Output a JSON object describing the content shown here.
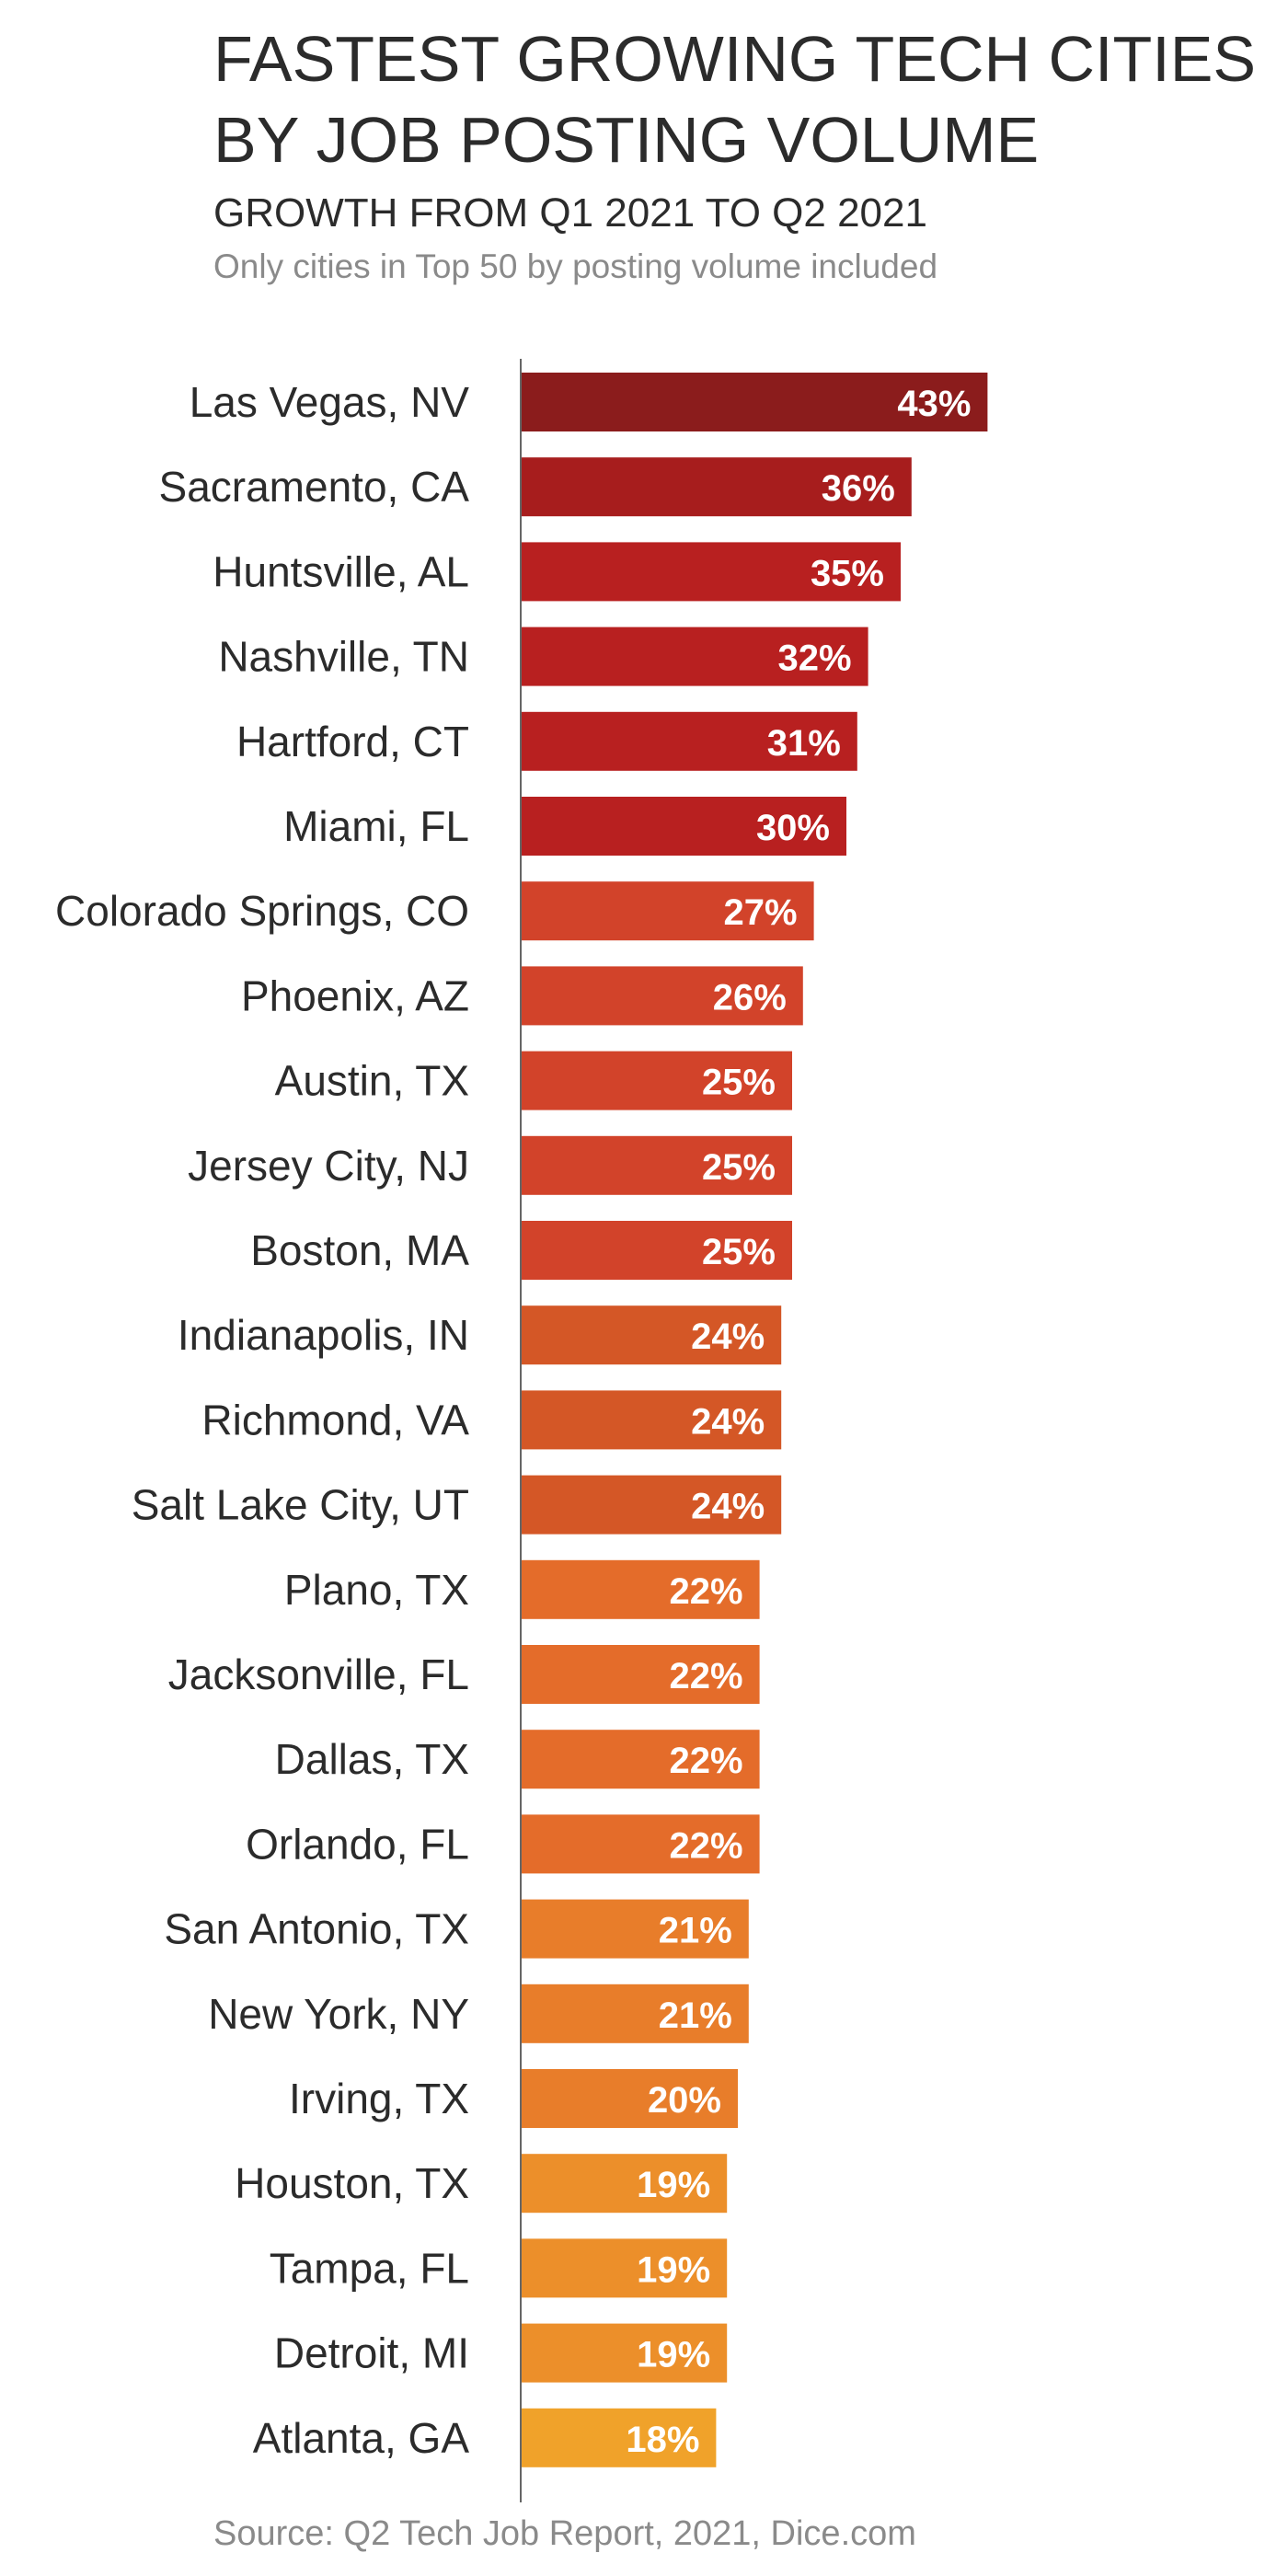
{
  "title_line1": "FASTEST GROWING TECH CITIES",
  "title_line2": "BY JOB POSTING VOLUME",
  "subtitle": "GROWTH FROM Q1 2021 TO Q2 2021",
  "note": "Only cities in Top 50 by posting volume included",
  "source": "Source: Q2 Tech Job Report, 2021, Dice.com",
  "colors": {
    "axis": "#666666",
    "label_text": "#2b2b2b",
    "value_text": "#ffffff"
  },
  "chart_data": {
    "type": "bar",
    "orientation": "horizontal",
    "title": "FASTEST GROWING TECH CITIES BY JOB POSTING VOLUME",
    "subtitle": "GROWTH FROM Q1 2021 TO Q2 2021",
    "value_suffix": "%",
    "xlim": [
      0,
      50
    ],
    "grid": false,
    "legend": "none",
    "categories": [
      "Las Vegas, NV",
      "Sacramento, CA",
      "Huntsville, AL",
      "Nashville, TN",
      "Hartford, CT",
      "Miami, FL",
      "Colorado Springs, CO",
      "Phoenix, AZ",
      "Austin, TX",
      "Jersey City, NJ",
      "Boston, MA",
      "Indianapolis, IN",
      "Richmond, VA",
      "Salt Lake City, UT",
      "Plano, TX",
      "Jacksonville, FL",
      "Dallas, TX",
      "Orlando, FL",
      "San Antonio, TX",
      "New York, NY",
      "Irving, TX",
      "Houston, TX",
      "Tampa, FL",
      "Detroit, MI",
      "Atlanta, GA"
    ],
    "values": [
      43,
      36,
      35,
      32,
      31,
      30,
      27,
      26,
      25,
      25,
      25,
      24,
      24,
      24,
      22,
      22,
      22,
      22,
      21,
      21,
      20,
      19,
      19,
      19,
      18
    ],
    "bar_colors": [
      "#8b1c1c",
      "#a71d1d",
      "#b82020",
      "#b82020",
      "#b82020",
      "#b82020",
      "#d2432a",
      "#d2432a",
      "#d2432a",
      "#d2432a",
      "#d2432a",
      "#d45726",
      "#d45726",
      "#d45726",
      "#e46c2a",
      "#e46c2a",
      "#e46c2a",
      "#e46c2a",
      "#e87d2a",
      "#e87d2a",
      "#e87d2a",
      "#ec8f2a",
      "#ec8f2a",
      "#ec8f2a",
      "#f0a22a"
    ]
  }
}
